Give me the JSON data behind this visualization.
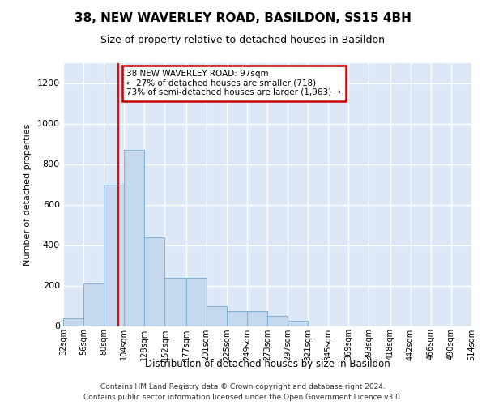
{
  "title": "38, NEW WAVERLEY ROAD, BASILDON, SS15 4BH",
  "subtitle": "Size of property relative to detached houses in Basildon",
  "xlabel": "Distribution of detached houses by size in Basildon",
  "ylabel": "Number of detached properties",
  "bar_color": "#c5d8ee",
  "bar_edge_color": "#7aafd4",
  "plot_bg_color": "#dce8f5",
  "red_line_x": 97,
  "annotation_line1": "38 NEW WAVERLEY ROAD: 97sqm",
  "annotation_line2": "← 27% of detached houses are smaller (718)",
  "annotation_line3": "73% of semi-detached houses are larger (1,963) →",
  "annotation_box_facecolor": "#ffffff",
  "annotation_box_edgecolor": "#cc0000",
  "bins": [
    32,
    56,
    80,
    104,
    128,
    152,
    177,
    201,
    225,
    249,
    273,
    297,
    321,
    345,
    369,
    393,
    418,
    442,
    466,
    490,
    514
  ],
  "bar_heights": [
    40,
    210,
    700,
    870,
    440,
    240,
    240,
    100,
    75,
    75,
    50,
    25,
    0,
    0,
    0,
    0,
    0,
    0,
    0,
    0
  ],
  "ylim_max": 1300,
  "yticks": [
    0,
    200,
    400,
    600,
    800,
    1000,
    1200
  ],
  "footer": "Contains HM Land Registry data © Crown copyright and database right 2024.\nContains public sector information licensed under the Open Government Licence v3.0."
}
